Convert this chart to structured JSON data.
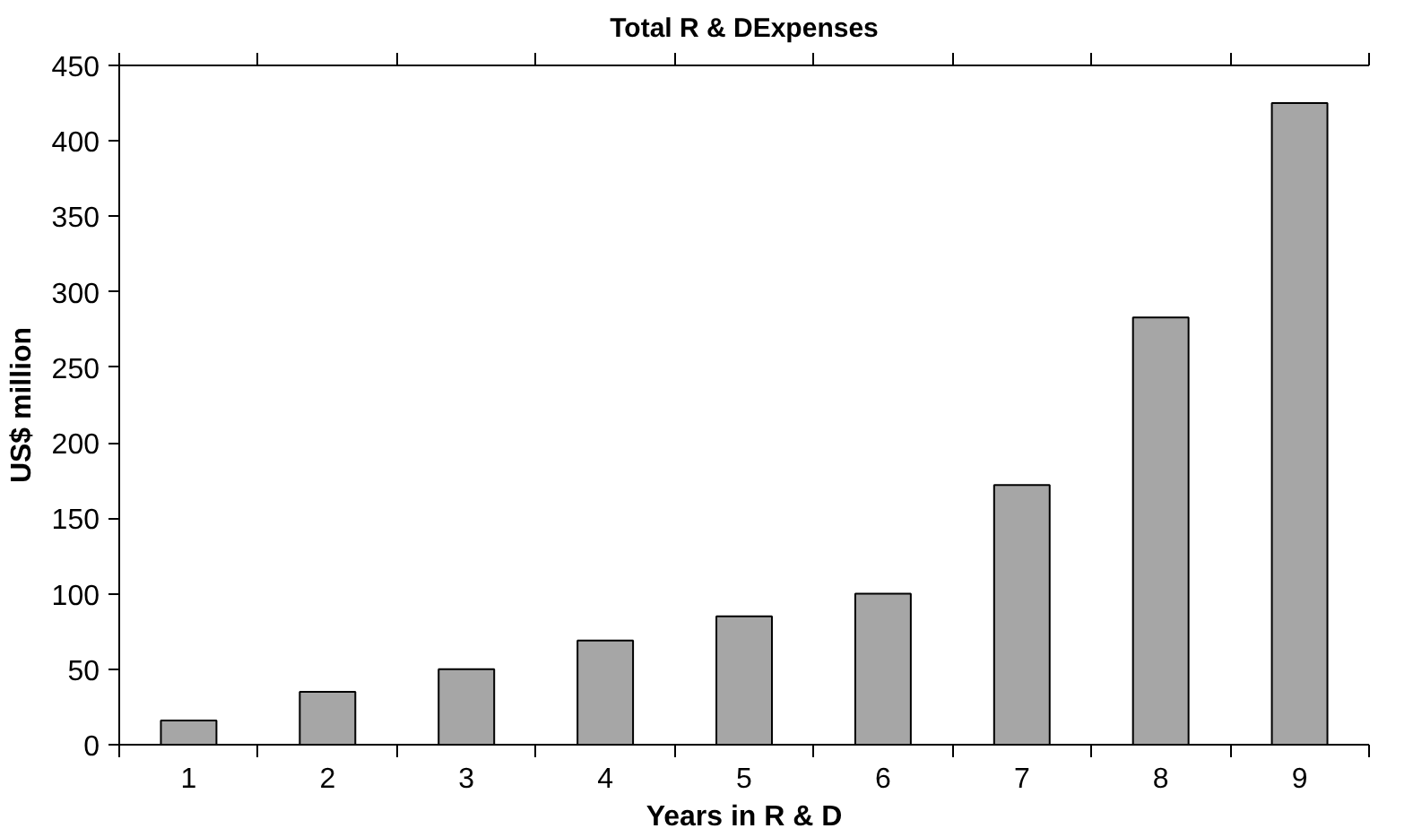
{
  "chart_data": {
    "type": "bar",
    "title": "Total R & DExpenses",
    "xlabel": "Years in R & D",
    "ylabel": "US$ million",
    "categories": [
      "1",
      "2",
      "3",
      "4",
      "5",
      "6",
      "7",
      "8",
      "9"
    ],
    "values": [
      16,
      35,
      50,
      69,
      85,
      100,
      172,
      283,
      425
    ],
    "color": "#a6a6a6",
    "ylim": [
      0,
      450
    ],
    "yticks": [
      0,
      50,
      100,
      150,
      200,
      250,
      300,
      350,
      400,
      450
    ],
    "grid": false
  }
}
